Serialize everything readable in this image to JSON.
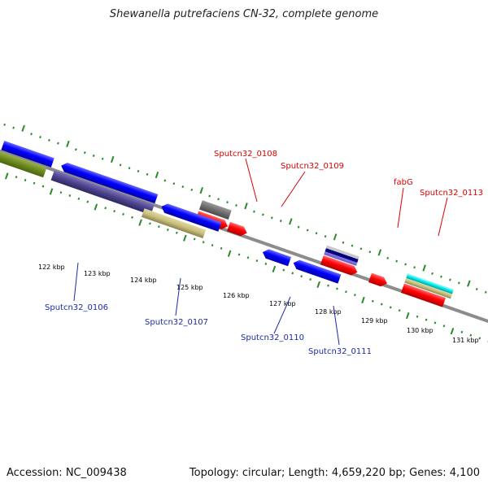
{
  "title": "Shewanella putrefaciens CN-32, complete genome",
  "footer": {
    "accession": "Accession: NC_009438",
    "summary": "Topology: circular; Length: 4,659,220 bp; Genes: 4,100"
  },
  "ticks": [
    {
      "label": "122 kbp"
    },
    {
      "label": "123 kbp"
    },
    {
      "label": "124 kbp"
    },
    {
      "label": "125 kbp"
    },
    {
      "label": "126 kbp"
    },
    {
      "label": "127 kbp"
    },
    {
      "label": "128 kbp"
    },
    {
      "label": "129 kbp"
    },
    {
      "label": "130 kbp"
    },
    {
      "label": "131 kbp"
    }
  ],
  "gene_labels": {
    "upper": [
      "Sputcn32_0108",
      "Sputcn32_0109",
      "fabG",
      "Sputcn32_0113"
    ],
    "lower": [
      "Sputcn32_0106",
      "Sputcn32_0107",
      "Sputcn32_0110",
      "Sputcn32_0111"
    ]
  },
  "colors": {
    "forward": "#ff0000",
    "reverse": "#0000ff",
    "upper_label": "#dd0000",
    "lower_label": "#1a2aa8",
    "ticks": "#2a8a2a",
    "backbone": "#8c8c8c"
  }
}
